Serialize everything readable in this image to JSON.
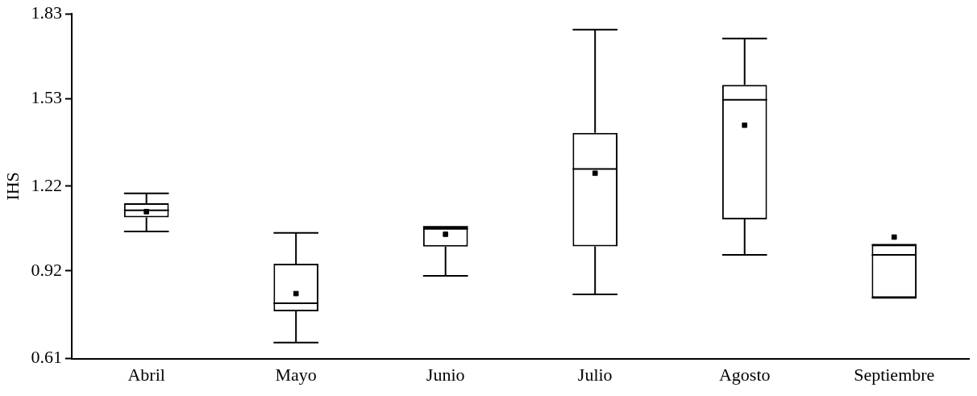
{
  "chart_data": {
    "type": "box",
    "ylabel": "IHS",
    "categories": [
      "Abril",
      "Mayo",
      "Junio",
      "Julio",
      "Agosto",
      "Septiembre"
    ],
    "boxes": [
      {
        "low": 1.06,
        "q1": 1.11,
        "median": 1.135,
        "q3": 1.16,
        "high": 1.195,
        "mean": 1.13
      },
      {
        "low": 0.667,
        "q1": 0.777,
        "median": 0.806,
        "q3": 0.946,
        "high": 1.055,
        "mean": 0.84
      },
      {
        "low": 0.903,
        "q1": 1.006,
        "median": 1.069,
        "q3": 1.076,
        "high": 1.076,
        "mean": 1.05
      },
      {
        "low": 0.837,
        "q1": 1.007,
        "median": 1.281,
        "q3": 1.409,
        "high": 1.774,
        "mean": 1.266
      },
      {
        "low": 0.977,
        "q1": 1.103,
        "median": 1.526,
        "q3": 1.579,
        "high": 1.743,
        "mean": 1.436
      },
      {
        "low": 0.825,
        "q1": 0.825,
        "median": 0.977,
        "q3": 1.013,
        "high": 1.013,
        "mean": 1.04
      }
    ],
    "color": "#000000",
    "ylim": [
      0.61,
      1.83
    ],
    "yticks": [
      0.61,
      0.92,
      1.22,
      1.53,
      1.83
    ],
    "grid": false,
    "legend": false,
    "marker": "square"
  }
}
